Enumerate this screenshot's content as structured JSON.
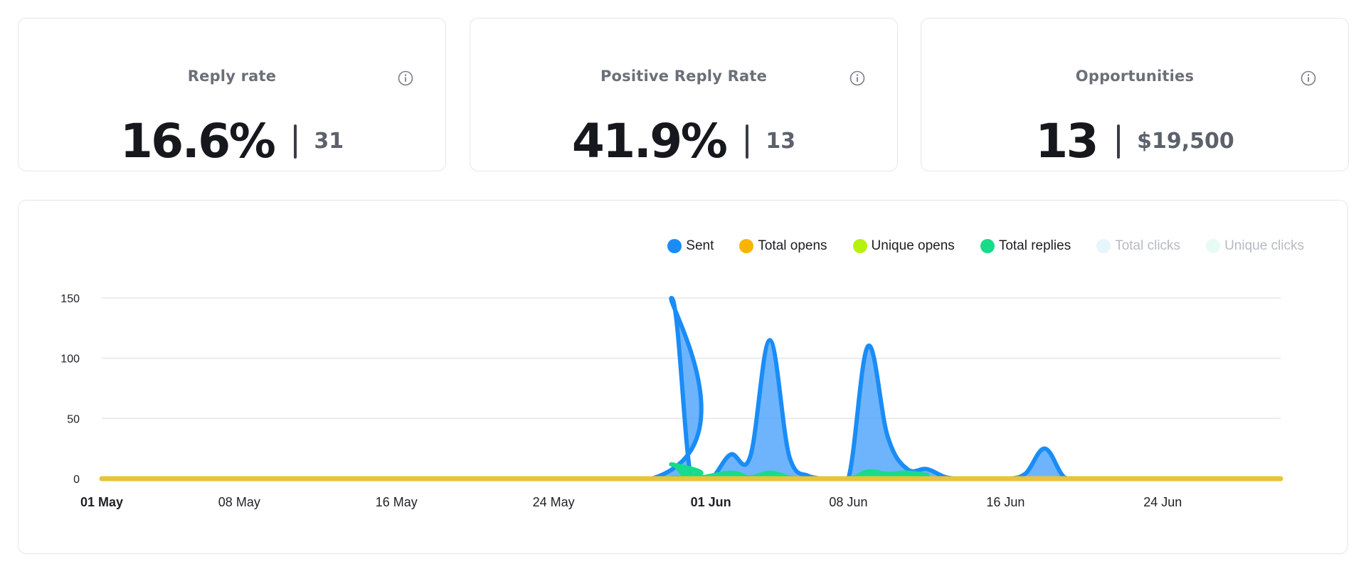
{
  "cards": [
    {
      "title": "Reply rate",
      "value": "16.6%",
      "sub": "31"
    },
    {
      "title": "Positive Reply Rate",
      "value": "41.9%",
      "sub": "13"
    },
    {
      "title": "Opportunities",
      "value": "13",
      "sub": "$19,500"
    }
  ],
  "legend": [
    {
      "label": "Sent",
      "color": "#1a8cf6",
      "active": true
    },
    {
      "label": "Total opens",
      "color": "#f7b500",
      "active": true
    },
    {
      "label": "Unique opens",
      "color": "#b6f20f",
      "active": true
    },
    {
      "label": "Total replies",
      "color": "#16dc8a",
      "active": true
    },
    {
      "label": "Total clicks",
      "color": "#e6f6fb",
      "active": false
    },
    {
      "label": "Unique clicks",
      "color": "#e6fbf6",
      "active": false
    }
  ],
  "chart_data": {
    "type": "area",
    "x_start": "2025-05-01",
    "x_end": "2025-06-30",
    "ylim": [
      0,
      150
    ],
    "y_ticks": [
      0,
      50,
      100,
      150
    ],
    "x_ticks": [
      {
        "label": "01 May",
        "date": "2025-05-01",
        "bold": true
      },
      {
        "label": "08 May",
        "date": "2025-05-08",
        "bold": false
      },
      {
        "label": "16 May",
        "date": "2025-05-16",
        "bold": false
      },
      {
        "label": "24 May",
        "date": "2025-05-24",
        "bold": false
      },
      {
        "label": "01 Jun",
        "date": "2025-06-01",
        "bold": true
      },
      {
        "label": "08 Jun",
        "date": "2025-06-08",
        "bold": false
      },
      {
        "label": "16 Jun",
        "date": "2025-06-16",
        "bold": false
      },
      {
        "label": "24 Jun",
        "date": "2025-06-24",
        "bold": false
      }
    ],
    "series": [
      {
        "name": "Sent",
        "color": "#1a8cf6",
        "fill": "#4ea3fb",
        "points": [
          [
            "2025-05-01",
            0
          ],
          [
            "2025-05-29",
            0
          ],
          [
            "2025-05-30",
            150
          ],
          [
            "2025-05-31",
            0
          ],
          [
            "2025-06-01",
            0
          ],
          [
            "2025-06-02",
            20
          ],
          [
            "2025-06-03",
            18
          ],
          [
            "2025-06-04",
            115
          ],
          [
            "2025-06-05",
            18
          ],
          [
            "2025-06-06",
            2
          ],
          [
            "2025-06-07",
            0
          ],
          [
            "2025-06-08",
            0
          ],
          [
            "2025-06-09",
            110
          ],
          [
            "2025-06-10",
            35
          ],
          [
            "2025-06-11",
            8
          ],
          [
            "2025-06-12",
            8
          ],
          [
            "2025-06-13",
            1
          ],
          [
            "2025-06-14",
            0
          ],
          [
            "2025-06-16",
            0
          ],
          [
            "2025-06-17",
            4
          ],
          [
            "2025-06-18",
            25
          ],
          [
            "2025-06-19",
            1
          ],
          [
            "2025-06-20",
            0
          ],
          [
            "2025-06-30",
            0
          ]
        ]
      },
      {
        "name": "Total replies",
        "color": "#16dc8a",
        "fill": "#16dc8a",
        "points": [
          [
            "2025-05-01",
            0
          ],
          [
            "2025-05-29",
            0
          ],
          [
            "2025-05-30",
            12
          ],
          [
            "2025-05-31",
            0
          ],
          [
            "2025-06-02",
            5
          ],
          [
            "2025-06-03",
            1
          ],
          [
            "2025-06-04",
            5
          ],
          [
            "2025-06-05",
            1
          ],
          [
            "2025-06-06",
            0
          ],
          [
            "2025-06-08",
            0
          ],
          [
            "2025-06-09",
            6
          ],
          [
            "2025-06-10",
            4
          ],
          [
            "2025-06-11",
            5
          ],
          [
            "2025-06-12",
            3
          ],
          [
            "2025-06-13",
            0
          ],
          [
            "2025-06-30",
            0
          ]
        ]
      },
      {
        "name": "Unique opens",
        "color": "#b6f20f",
        "fill": "#b6f20f",
        "points": [
          [
            "2025-05-01",
            0
          ],
          [
            "2025-06-30",
            0
          ]
        ]
      },
      {
        "name": "Total opens",
        "color": "#e7c43a",
        "fill": "#e7c43a",
        "points": [
          [
            "2025-05-01",
            0
          ],
          [
            "2025-06-30",
            0
          ]
        ]
      }
    ]
  }
}
